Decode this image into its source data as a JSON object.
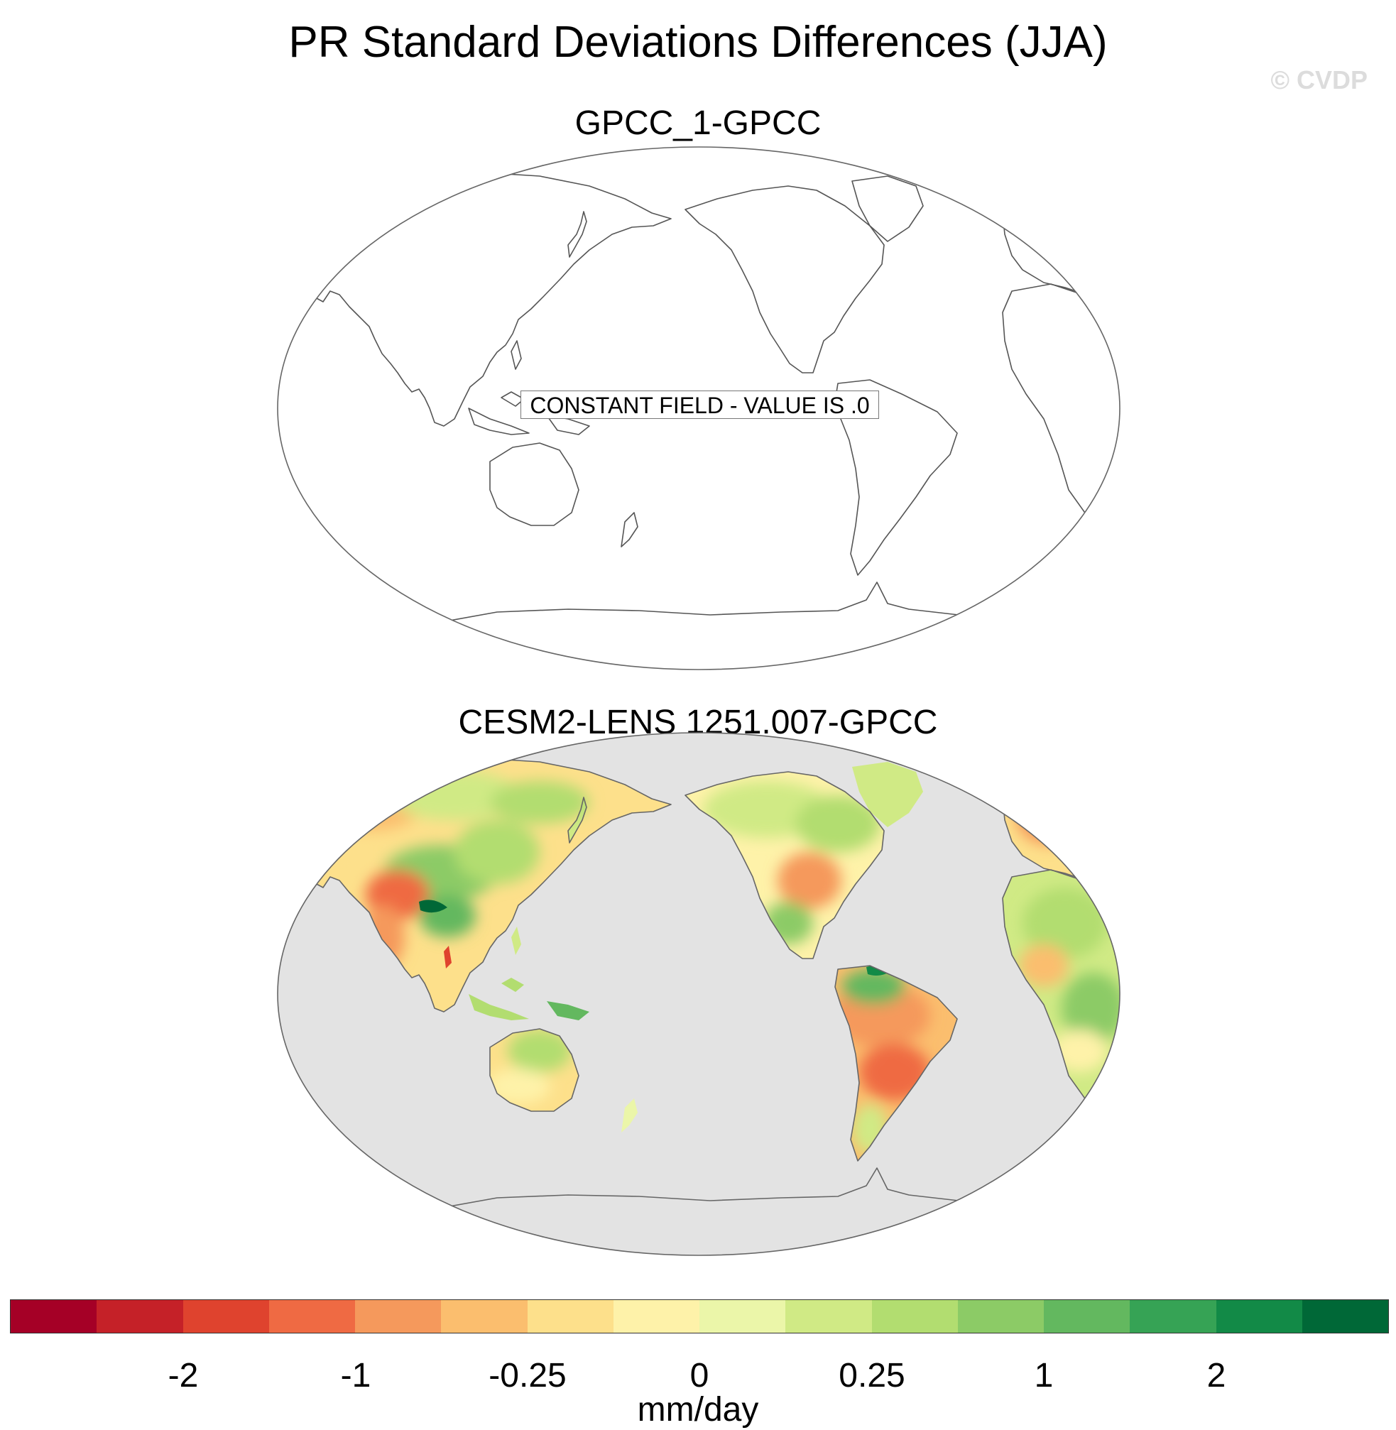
{
  "title": "PR Standard Deviations Differences (JJA)",
  "watermark": "© CVDP",
  "panels": [
    {
      "title": "GPCC_1-GPCC",
      "annotation": "CONSTANT FIELD - VALUE IS .0",
      "field": "constant"
    },
    {
      "title": "CESM2-LENS 1251.007-GPCC",
      "field": "filled",
      "ocean_color": "#e3e3e3"
    }
  ],
  "colorbar": {
    "units": "mm/day",
    "colors": [
      "#a50026",
      "#c52128",
      "#df432e",
      "#ef6a43",
      "#f5995c",
      "#fbbe6e",
      "#fde08b",
      "#fef2a9",
      "#ebf6a9",
      "#d0ea85",
      "#b2dd70",
      "#8ccb66",
      "#63b85f",
      "#36a355",
      "#128a47",
      "#006837"
    ],
    "tick_labels": [
      "-2",
      "-1",
      "-0.25",
      "0",
      "0.25",
      "1",
      "2"
    ]
  }
}
